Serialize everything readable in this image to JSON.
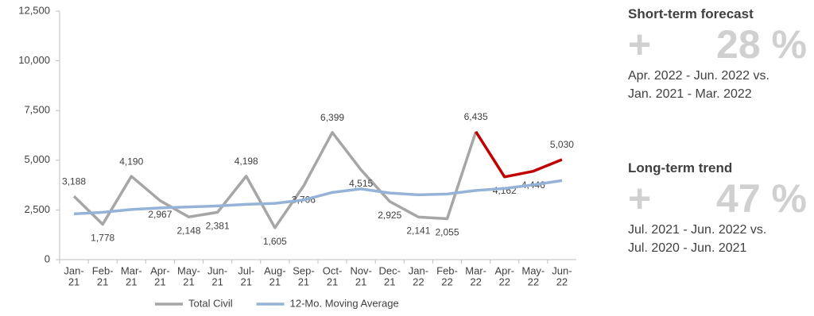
{
  "chart_data": {
    "type": "line",
    "categories": [
      [
        "Jan-",
        "21"
      ],
      [
        "Feb-",
        "21"
      ],
      [
        "Mar-",
        "21"
      ],
      [
        "Apr-",
        "21"
      ],
      [
        "May-",
        "21"
      ],
      [
        "Jun-",
        "21"
      ],
      [
        "Jul-",
        "21"
      ],
      [
        "Aug-",
        "21"
      ],
      [
        "Sep-",
        "21"
      ],
      [
        "Oct-",
        "21"
      ],
      [
        "Nov-",
        "21"
      ],
      [
        "Dec-",
        "21"
      ],
      [
        "Jan-",
        "22"
      ],
      [
        "Feb-",
        "22"
      ],
      [
        "Mar-",
        "22"
      ],
      [
        "Apr-",
        "22"
      ],
      [
        "May-",
        "22"
      ],
      [
        "Jun-",
        "22"
      ]
    ],
    "series": [
      {
        "name": "Total Civil",
        "color": "#a6a6a6",
        "values": [
          3188,
          1778,
          4190,
          2967,
          2148,
          2381,
          4198,
          1605,
          3706,
          6399,
          4515,
          2925,
          2141,
          2055,
          6435,
          null,
          null,
          null
        ],
        "value_labels": [
          "3,188",
          "1,778",
          "4,190",
          "2,967",
          "2,148",
          "2,381",
          "4,198",
          "1,605",
          "3,706",
          "6,399",
          "4,515",
          "2,925",
          "2,141",
          "2,055",
          "6,435",
          null,
          null,
          null
        ]
      },
      {
        "color": "#c00000",
        "values": [
          null,
          null,
          null,
          null,
          null,
          null,
          null,
          null,
          null,
          null,
          null,
          null,
          null,
          null,
          6435,
          4162,
          4446,
          5030
        ],
        "value_labels": [
          null,
          null,
          null,
          null,
          null,
          null,
          null,
          null,
          null,
          null,
          null,
          null,
          null,
          null,
          null,
          "4,162",
          "4,446",
          "5,030"
        ]
      },
      {
        "name": "12-Mo. Moving Average",
        "color": "#95b3d7",
        "values": [
          2300,
          2380,
          2520,
          2600,
          2650,
          2700,
          2780,
          2830,
          3000,
          3380,
          3560,
          3350,
          3260,
          3300,
          3480,
          3580,
          3760,
          3980
        ]
      }
    ],
    "ylim": [
      0,
      12500
    ],
    "yticks": [
      0,
      {
        "value": 2500,
        "label": "2,500"
      },
      {
        "value": 5000,
        "label": "5,000"
      },
      {
        "value": 7500,
        "label": "7,500"
      },
      {
        "value": 10000,
        "label": "10,000"
      },
      {
        "value": 12500,
        "label": "12,500"
      }
    ],
    "legend": "bottom"
  },
  "panels": [
    {
      "title": "Short-term forecast",
      "sign": "+",
      "value": "28 %",
      "lines": [
        "Apr. 2022 - Jun. 2022 vs.",
        "Jan. 2021 - Mar. 2022"
      ]
    },
    {
      "title": "Long-term trend",
      "sign": "+",
      "value": "47 %",
      "lines": [
        "Jul. 2021 - Jun. 2022 vs.",
        "Jul. 2020 - Jun. 2021"
      ]
    }
  ]
}
